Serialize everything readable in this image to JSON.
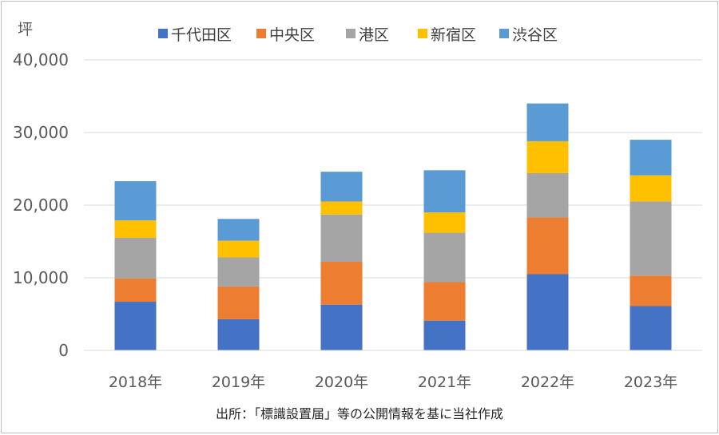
{
  "chart_data": {
    "type": "bar",
    "stacked": true,
    "unit_label": "坪",
    "categories": [
      "2018年",
      "2019年",
      "2020年",
      "2021年",
      "2022年",
      "2023年"
    ],
    "series": [
      {
        "name": "千代田区",
        "color": "#4472C4",
        "values": [
          6700,
          4300,
          6300,
          4100,
          10500,
          6100
        ]
      },
      {
        "name": "中央区",
        "color": "#ED7D31",
        "values": [
          3200,
          4500,
          5900,
          5300,
          7800,
          4200
        ]
      },
      {
        "name": "港区",
        "color": "#A5A5A5",
        "values": [
          5600,
          4000,
          6500,
          6800,
          6100,
          10200
        ]
      },
      {
        "name": "新宿区",
        "color": "#FFC000",
        "values": [
          2400,
          2300,
          1800,
          2800,
          4400,
          3600
        ]
      },
      {
        "name": "渋谷区",
        "color": "#5B9BD5",
        "values": [
          5400,
          3000,
          4100,
          5800,
          5200,
          4900
        ]
      }
    ],
    "ylim": [
      0,
      40000
    ],
    "yticks": [
      "0",
      "10,000",
      "20,000",
      "30,000",
      "40,000"
    ],
    "grid": true,
    "legend_position": "top"
  },
  "footer": {
    "source": "出所：「標識設置届」等の公開情報を基に当社作成"
  }
}
